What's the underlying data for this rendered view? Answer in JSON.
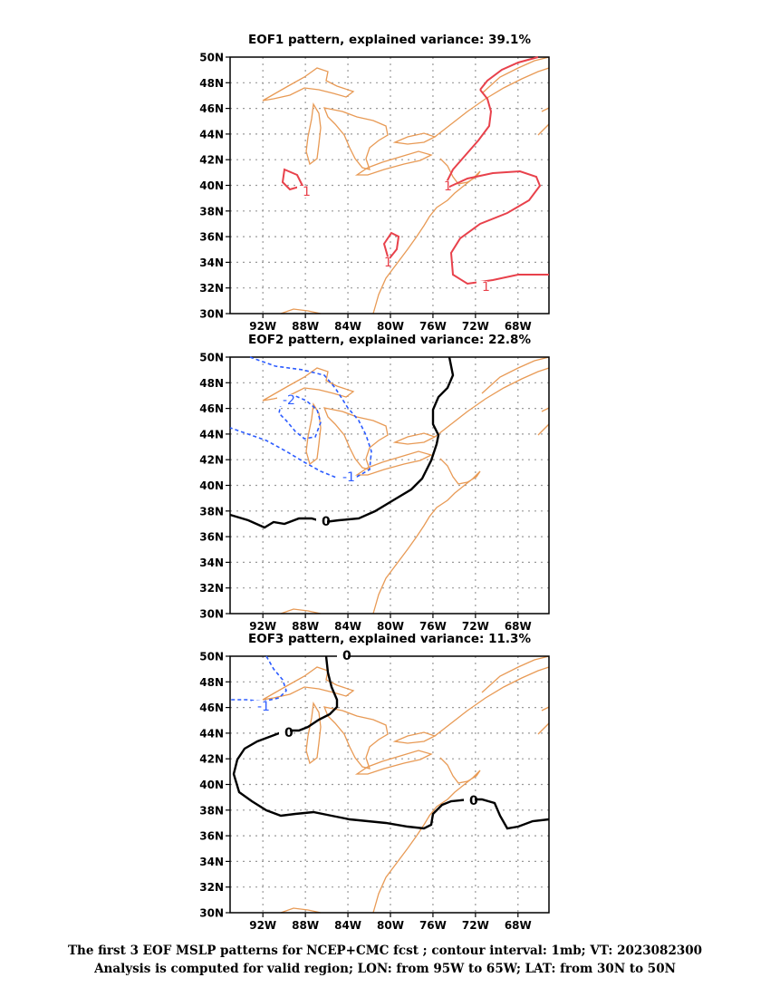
{
  "panels": [
    {
      "title": "EOF1 pattern, explained variance: 39.1%",
      "contours": [
        {
          "level": "1",
          "color": "#e8414b",
          "style": "solid"
        }
      ]
    },
    {
      "title": "EOF2 pattern, explained variance: 22.8%",
      "contours": [
        {
          "level": "-1",
          "color": "#2b5bff",
          "style": "dashed"
        },
        {
          "level": "-2",
          "color": "#2b5bff",
          "style": "dashed"
        },
        {
          "level": "0",
          "color": "#000000",
          "style": "solid"
        }
      ]
    },
    {
      "title": "EOF3 pattern, explained variance: 11.3%",
      "contours": [
        {
          "level": "-1",
          "color": "#2b5bff",
          "style": "dashed"
        },
        {
          "level": "0",
          "color": "#000000",
          "style": "solid"
        }
      ]
    }
  ],
  "axes": {
    "lat_labels": [
      "50N",
      "48N",
      "46N",
      "44N",
      "42N",
      "40N",
      "38N",
      "36N",
      "34N",
      "32N",
      "30N"
    ],
    "lon_labels": [
      "92W",
      "88W",
      "84W",
      "80W",
      "76W",
      "72W",
      "68W"
    ]
  },
  "colors": {
    "coastline": "#e89a55",
    "positive": "#e8414b",
    "negative": "#2b5bff",
    "zero": "#000000",
    "grid": "#999999"
  },
  "caption": {
    "line1": "The first 3 EOF MSLP patterns for NCEP+CMC fcst ; contour interval: 1mb; VT: 2023082300",
    "line2": "Analysis is computed for valid region; LON: from 95W to 65W; LAT: from 30N to 50N"
  }
}
